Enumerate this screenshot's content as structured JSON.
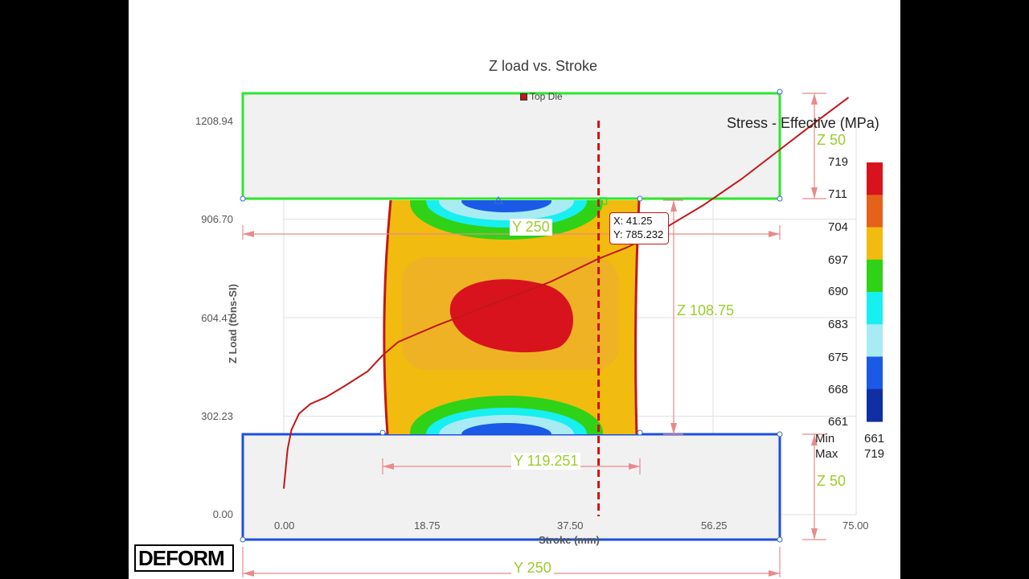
{
  "chart_data": {
    "type": "line",
    "title": "Z load vs. Stroke",
    "xlabel": "Stroke (mm)",
    "ylabel": "Z Load (tons-SI)",
    "x_ticks": [
      "0.00",
      "18.75",
      "37.50",
      "56.25",
      "75.00"
    ],
    "y_ticks": [
      "0.00",
      "302.23",
      "604.47",
      "906.70",
      "1208.94"
    ],
    "xlim": [
      0,
      75
    ],
    "ylim": [
      0,
      1208.94
    ],
    "grid": true,
    "series": [
      {
        "name": "Top Die",
        "color": "#c01818",
        "points": [
          [
            0.0,
            80
          ],
          [
            0.5,
            200
          ],
          [
            1.0,
            260
          ],
          [
            2.0,
            310
          ],
          [
            3.5,
            340
          ],
          [
            5.5,
            360
          ],
          [
            8.0,
            395
          ],
          [
            11.0,
            440
          ],
          [
            13.0,
            490
          ],
          [
            15.0,
            530
          ],
          [
            20.0,
            580
          ],
          [
            25.0,
            625
          ],
          [
            30.0,
            670
          ],
          [
            35.0,
            715
          ],
          [
            41.25,
            785.232
          ],
          [
            45.0,
            820
          ],
          [
            50.0,
            880
          ],
          [
            55.0,
            950
          ],
          [
            60.0,
            1030
          ],
          [
            65.0,
            1120
          ],
          [
            70.0,
            1210
          ],
          [
            74.0,
            1280
          ]
        ]
      }
    ],
    "cursor": {
      "x_label": "X: 41.25",
      "y_label": "Y: 785.232",
      "x": 41.25,
      "y": 785.232
    }
  },
  "dimensions": {
    "top_die_height": "Z 50",
    "top_width": "Y 250",
    "billet_width": "Y 119.251",
    "billet_height": "Z 108.75",
    "bottom_die_height": "Z 50",
    "bottom_width": "Y 250"
  },
  "legend": {
    "title": "Stress - Effective (MPa)",
    "values": [
      "719",
      "711",
      "704",
      "697",
      "690",
      "683",
      "675",
      "668",
      "661"
    ],
    "colors": [
      "#d8131e",
      "#e5621a",
      "#f2bb0f",
      "#2fd216",
      "#18eff1",
      "#a8ebf3",
      "#1b5ae6",
      "#0f2fa2"
    ],
    "min_label": "Min",
    "min_value": "661",
    "max_label": "Max",
    "max_value": "719"
  },
  "logo_text": "DEFORM"
}
